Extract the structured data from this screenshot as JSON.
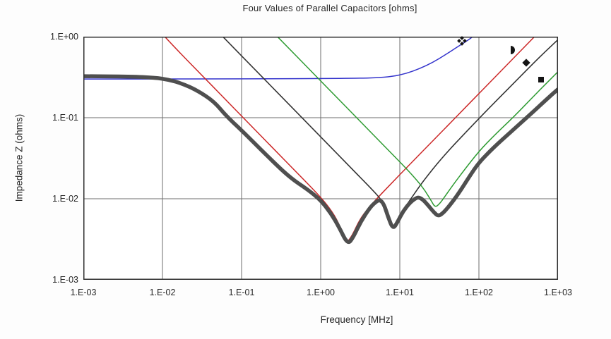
{
  "chart_data": {
    "type": "line",
    "title": "Four Values of Parallel Capacitors [ohms]",
    "xlabel": "Frequency [MHz]",
    "ylabel": "Impedance Z (ohms)",
    "x_scale": "log",
    "y_scale": "log",
    "xlim": [
      0.001,
      1000
    ],
    "ylim": [
      0.001,
      1
    ],
    "grid": true,
    "legend": "none",
    "x_ticks": [
      {
        "value": 0.001,
        "label": "1.E-03"
      },
      {
        "value": 0.01,
        "label": "1.E-02"
      },
      {
        "value": 0.1,
        "label": "1.E-01"
      },
      {
        "value": 1,
        "label": "1.E+00"
      },
      {
        "value": 10,
        "label": "1.E+01"
      },
      {
        "value": 100,
        "label": "1.E+02"
      },
      {
        "value": 1000,
        "label": "1.E+03"
      }
    ],
    "y_ticks": [
      {
        "value": 1,
        "label": "1.E+00"
      },
      {
        "value": 0.1,
        "label": "1.E-01"
      },
      {
        "value": 0.01,
        "label": "1.E-02"
      },
      {
        "value": 0.001,
        "label": "1.E-03"
      }
    ],
    "colors": {
      "frame": "#2e2e2e",
      "gridline": "#6e6e6e",
      "blue_series": "#3333cc",
      "red_series": "#cc2727",
      "black_series": "#333333",
      "green_series": "#2e9b32",
      "combined_series": "#4f4f4f",
      "marker": "#141414"
    },
    "series": [
      {
        "name": "blue-esr-flat-capacitor-curve",
        "color": "#3333cc",
        "width": 1.5,
        "points": [
          [
            0.001,
            0.3
          ],
          [
            0.005,
            0.3
          ],
          [
            0.01,
            0.3
          ],
          [
            0.05,
            0.301
          ],
          [
            0.2,
            0.302
          ],
          [
            1,
            0.304
          ],
          [
            3,
            0.307
          ],
          [
            5,
            0.311
          ],
          [
            8,
            0.322
          ],
          [
            12,
            0.35
          ],
          [
            18,
            0.405
          ],
          [
            26,
            0.48
          ],
          [
            38,
            0.6
          ],
          [
            55,
            0.76
          ],
          [
            75,
            0.92
          ],
          [
            95,
            1.1
          ]
        ]
      },
      {
        "name": "red-capacitor-v-curve",
        "color": "#cc2727",
        "width": 1.5,
        "points": [
          [
            0.0075,
            1.45
          ],
          [
            0.015,
            0.7
          ],
          [
            0.03,
            0.35
          ],
          [
            0.06,
            0.175
          ],
          [
            0.12,
            0.0875
          ],
          [
            0.25,
            0.042
          ],
          [
            0.5,
            0.021
          ],
          [
            0.9,
            0.0117
          ],
          [
            1.3,
            0.0077
          ],
          [
            1.7,
            0.005
          ],
          [
            2.1,
            0.0028
          ],
          [
            2.5,
            0.0035
          ],
          [
            3.1,
            0.0055
          ],
          [
            4,
            0.0077
          ],
          [
            5.5,
            0.0108
          ],
          [
            8,
            0.0158
          ],
          [
            12,
            0.0238
          ],
          [
            25,
            0.0495
          ],
          [
            54,
            0.107
          ],
          [
            120,
            0.238
          ],
          [
            260,
            0.515
          ],
          [
            550,
            1.09
          ]
        ]
      },
      {
        "name": "black-capacitor-v-curve",
        "color": "#333333",
        "width": 1.6,
        "points": [
          [
            0.04,
            1.45
          ],
          [
            0.08,
            0.725
          ],
          [
            0.16,
            0.3625
          ],
          [
            0.32,
            0.181
          ],
          [
            0.64,
            0.0906
          ],
          [
            1.3,
            0.0446
          ],
          [
            2.6,
            0.0223
          ],
          [
            4.5,
            0.0129
          ],
          [
            6.2,
            0.0091
          ],
          [
            7.3,
            0.006
          ],
          [
            8.1,
            0.0041
          ],
          [
            9.3,
            0.0053
          ],
          [
            11,
            0.0072
          ],
          [
            14,
            0.0102
          ],
          [
            20,
            0.0168
          ],
          [
            35,
            0.033
          ],
          [
            70,
            0.068
          ],
          [
            140,
            0.137
          ],
          [
            300,
            0.29
          ],
          [
            600,
            0.575
          ],
          [
            1000,
            0.92
          ]
        ]
      },
      {
        "name": "green-capacitor-v-curve",
        "color": "#2e9b32",
        "width": 1.5,
        "points": [
          [
            0.2,
            1.42
          ],
          [
            0.4,
            0.71
          ],
          [
            0.8,
            0.355
          ],
          [
            1.6,
            0.178
          ],
          [
            3.2,
            0.089
          ],
          [
            6.4,
            0.0445
          ],
          [
            12,
            0.0238
          ],
          [
            17,
            0.0163
          ],
          [
            21,
            0.0125
          ],
          [
            25,
            0.0094
          ],
          [
            28,
            0.0078
          ],
          [
            32,
            0.0087
          ],
          [
            38,
            0.011
          ],
          [
            48,
            0.0152
          ],
          [
            65,
            0.0225
          ],
          [
            100,
            0.0385
          ],
          [
            160,
            0.062
          ],
          [
            275,
            0.102
          ],
          [
            520,
            0.195
          ],
          [
            1000,
            0.37
          ]
        ]
      },
      {
        "name": "thick-gray-parallel-combination-curve",
        "color": "#4f4f4f",
        "width": 5.5,
        "points": [
          [
            0.001,
            0.325
          ],
          [
            0.004,
            0.322
          ],
          [
            0.008,
            0.312
          ],
          [
            0.012,
            0.295
          ],
          [
            0.018,
            0.262
          ],
          [
            0.028,
            0.215
          ],
          [
            0.045,
            0.158
          ],
          [
            0.064,
            0.105
          ],
          [
            0.1,
            0.07
          ],
          [
            0.2,
            0.0355
          ],
          [
            0.4,
            0.0185
          ],
          [
            0.7,
            0.0128
          ],
          [
            1.0,
            0.0096
          ],
          [
            1.35,
            0.0066
          ],
          [
            1.7,
            0.0045
          ],
          [
            2.2,
            0.0027
          ],
          [
            2.6,
            0.0034
          ],
          [
            3.2,
            0.0052
          ],
          [
            4.2,
            0.0078
          ],
          [
            5.0,
            0.0092
          ],
          [
            5.6,
            0.0097
          ],
          [
            6.3,
            0.0086
          ],
          [
            7.1,
            0.006
          ],
          [
            8.2,
            0.0042
          ],
          [
            9.4,
            0.0052
          ],
          [
            11,
            0.007
          ],
          [
            13.5,
            0.009
          ],
          [
            16,
            0.0102
          ],
          [
            17.5,
            0.0104
          ],
          [
            20,
            0.0096
          ],
          [
            23.5,
            0.008
          ],
          [
            27,
            0.0068
          ],
          [
            30.5,
            0.0061
          ],
          [
            35,
            0.0066
          ],
          [
            42,
            0.0081
          ],
          [
            55,
            0.0115
          ],
          [
            75,
            0.0185
          ],
          [
            100,
            0.028
          ],
          [
            150,
            0.042
          ],
          [
            250,
            0.066
          ],
          [
            470,
            0.115
          ],
          [
            700,
            0.165
          ],
          [
            1000,
            0.225
          ]
        ]
      }
    ],
    "point_markers": [
      {
        "shape": "four-diamonds",
        "x": 61,
        "y": 0.89
      },
      {
        "shape": "right-half-circle",
        "x": 270,
        "y": 0.68
      },
      {
        "shape": "diamond",
        "x": 400,
        "y": 0.475
      },
      {
        "shape": "square",
        "x": 615,
        "y": 0.295
      }
    ]
  }
}
